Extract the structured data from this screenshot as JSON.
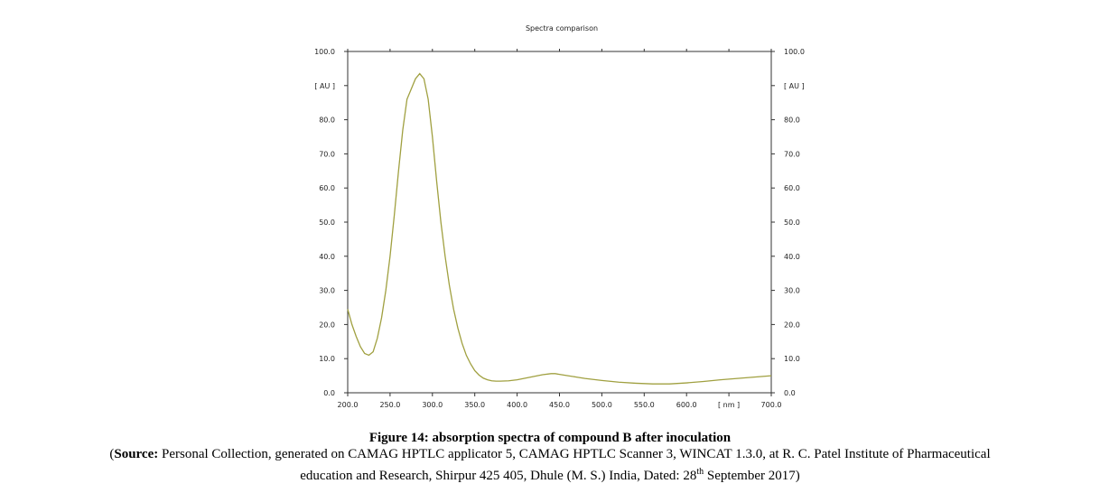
{
  "chart_data": {
    "type": "line",
    "title": "Spectra comparison",
    "xlabel": "[ nm ]",
    "ylabel": "[ AU ]",
    "xlim": [
      200,
      700
    ],
    "ylim": [
      0,
      100
    ],
    "x_ticks": [
      "200.0",
      "250.0",
      "300.0",
      "350.0",
      "400.0",
      "450.0",
      "500.0",
      "550.0",
      "600.0",
      "[ nm ]",
      "700.0"
    ],
    "y_ticks": [
      "0.0",
      "10.0",
      "20.0",
      "30.0",
      "40.0",
      "50.0",
      "60.0",
      "70.0",
      "80.0",
      "[ AU ]",
      "100.0"
    ],
    "grid": false,
    "line_color": "#a0a040",
    "series": [
      {
        "x": [
          200,
          205,
          210,
          215,
          220,
          225,
          230,
          235,
          240,
          245,
          250,
          255,
          260,
          265,
          270,
          275,
          280,
          285,
          290,
          295,
          300,
          305,
          310,
          315,
          320,
          325,
          330,
          335,
          340,
          345,
          350,
          355,
          360,
          365,
          370,
          375,
          380,
          390,
          400,
          410,
          420,
          430,
          440,
          445,
          450,
          460,
          470,
          480,
          500,
          520,
          540,
          560,
          580,
          600,
          620,
          640,
          660,
          680,
          700
        ],
        "values": [
          24.5,
          20,
          16.5,
          13.5,
          11.5,
          11,
          12,
          16,
          22,
          30,
          40,
          52,
          65,
          77,
          86,
          89,
          92,
          93.5,
          92,
          86,
          75,
          62,
          50,
          40,
          31.5,
          24.5,
          19,
          14.5,
          11,
          8.5,
          6.5,
          5.2,
          4.3,
          3.8,
          3.5,
          3.4,
          3.4,
          3.5,
          3.8,
          4.3,
          4.8,
          5.3,
          5.6,
          5.6,
          5.4,
          5,
          4.6,
          4.2,
          3.6,
          3.1,
          2.8,
          2.6,
          2.6,
          2.9,
          3.3,
          3.8,
          4.2,
          4.6,
          5
        ]
      }
    ]
  },
  "caption": {
    "figure": "Figure 14: absorption spectra of compound B after inoculation",
    "source_label": "Source:",
    "source_line1_rest": " Personal Collection, generated on CAMAG HPTLC applicator 5, CAMAG HPTLC Scanner 3, WINCAT 1.3.0, at R. C. Patel Institute of Pharmaceutical",
    "source_line2_pre": "education and Research, Shirpur 425 405, Dhule (M. S.) India, Dated: 28",
    "source_line2_sup": "th",
    "source_line2_post": " September 2017)"
  }
}
